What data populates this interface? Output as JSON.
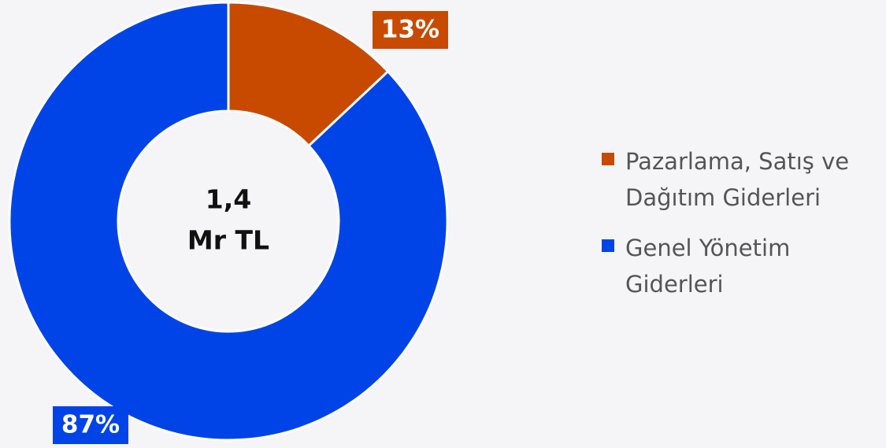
{
  "chart_data": {
    "type": "pie",
    "donut": true,
    "categories": [
      "Pazarlama, Satış ve Dağıtım Giderleri",
      "Genel Yönetim Giderleri"
    ],
    "values": [
      13,
      87
    ],
    "value_labels": [
      "13%",
      "87%"
    ],
    "colors": [
      "#c84a00",
      "#0044e8"
    ],
    "center_label": [
      "1,4",
      "Mr TL"
    ],
    "legend": "right"
  }
}
